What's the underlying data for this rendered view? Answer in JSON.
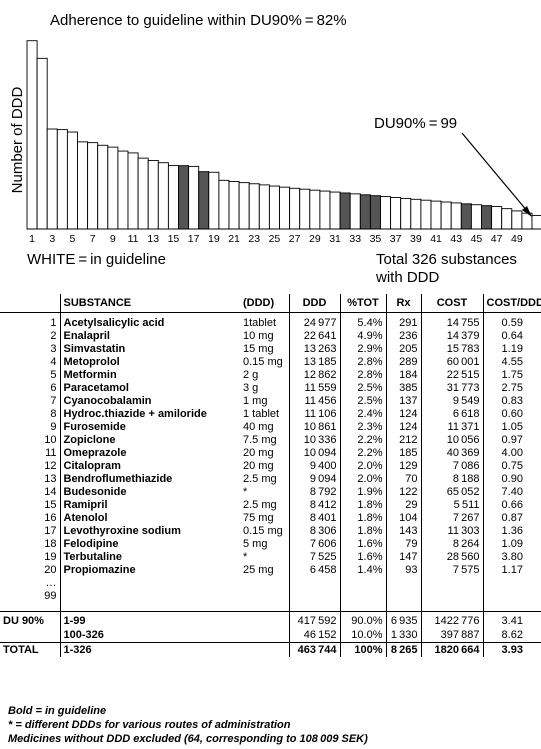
{
  "chart_data": {
    "type": "bar",
    "title": "Adherence to guideline within DU90% = 82%",
    "ylabel": "Number of DDD",
    "xlabel": "",
    "x": [
      1,
      2,
      3,
      4,
      5,
      6,
      7,
      8,
      9,
      10,
      11,
      12,
      13,
      14,
      15,
      16,
      17,
      18,
      19,
      20,
      21,
      22,
      23,
      24,
      25,
      26,
      27,
      28,
      29,
      30,
      31,
      32,
      33,
      34,
      35,
      36,
      37,
      38,
      39,
      40,
      41,
      42,
      43,
      44,
      45,
      46,
      47,
      48,
      49,
      50,
      51
    ],
    "x_tick_labels": [
      "1",
      "3",
      "5",
      "7",
      "9",
      "11",
      "13",
      "15",
      "17",
      "19",
      "21",
      "23",
      "25",
      "27",
      "29",
      "31",
      "33",
      "35",
      "37",
      "39",
      "41",
      "43",
      "45",
      "47",
      "49"
    ],
    "values": [
      24977,
      22641,
      13263,
      13185,
      12862,
      11559,
      11456,
      11106,
      10861,
      10336,
      10094,
      9400,
      9094,
      8792,
      8412,
      8401,
      8306,
      7606,
      7525,
      6458,
      6300,
      6150,
      6000,
      5850,
      5700,
      5550,
      5400,
      5280,
      5150,
      5030,
      4900,
      4780,
      4660,
      4540,
      4420,
      4300,
      4180,
      4060,
      3940,
      3820,
      3700,
      3580,
      3460,
      3340,
      3220,
      3100,
      2980,
      2700,
      2400,
      2100,
      1800
    ],
    "in_guideline": [
      true,
      true,
      true,
      true,
      true,
      true,
      true,
      true,
      true,
      true,
      true,
      true,
      true,
      true,
      true,
      false,
      true,
      false,
      true,
      true,
      true,
      true,
      true,
      true,
      true,
      true,
      true,
      true,
      true,
      true,
      true,
      false,
      true,
      false,
      false,
      true,
      true,
      true,
      true,
      true,
      true,
      true,
      true,
      false,
      true,
      false,
      true,
      true,
      true,
      true,
      true
    ],
    "colors": {
      "in_guideline": "#ffffff",
      "not_in_guideline": "#555555",
      "outline": "#000000"
    },
    "ylim": [
      0,
      26000
    ],
    "legend": "WHITE = in guideline",
    "annotation": "DU90% = 99",
    "total_note": [
      "Total 326 substances",
      "with DDD"
    ]
  },
  "table": {
    "headers": {
      "substance": "SUBSTANCE",
      "ddd_unit": "(DDD)",
      "ddd": "DDD",
      "pct": "%TOT",
      "rx": "Rx",
      "cost": "COST",
      "cost_ddd": "COST/DDD"
    },
    "rows": [
      {
        "n": "1",
        "name": "Acetylsalicylic acid",
        "unit": "1tablet",
        "ddd": "24 977",
        "pct": "5.4%",
        "rx": "291",
        "cost": "14 755",
        "cpd": "0.59"
      },
      {
        "n": "2",
        "name": "Enalapril",
        "unit": "10 mg",
        "ddd": "22 641",
        "pct": "4.9%",
        "rx": "236",
        "cost": "14 379",
        "cpd": "0.64"
      },
      {
        "n": "3",
        "name": "Simvastatin",
        "unit": "15 mg",
        "ddd": "13 263",
        "pct": "2.9%",
        "rx": "205",
        "cost": "15 783",
        "cpd": "1.19"
      },
      {
        "n": "4",
        "name": "Metoprolol",
        "unit": "0.15 mg",
        "ddd": "13 185",
        "pct": "2.8%",
        "rx": "289",
        "cost": "60 001",
        "cpd": "4.55"
      },
      {
        "n": "5",
        "name": "Metformin",
        "unit": "2 g",
        "ddd": "12 862",
        "pct": "2.8%",
        "rx": "184",
        "cost": "22 515",
        "cpd": "1.75"
      },
      {
        "n": "6",
        "name": "Paracetamol",
        "unit": "3 g",
        "ddd": "11 559",
        "pct": "2.5%",
        "rx": "385",
        "cost": "31 773",
        "cpd": "2.75"
      },
      {
        "n": "7",
        "name": "Cyanocobalamin",
        "unit": "1 mg",
        "ddd": "11 456",
        "pct": "2.5%",
        "rx": "137",
        "cost": "9 549",
        "cpd": "0.83"
      },
      {
        "n": "8",
        "name": "Hydroc.thiazide + amiloride",
        "unit": "1 tablet",
        "ddd": "11 106",
        "pct": "2.4%",
        "rx": "124",
        "cost": "6 618",
        "cpd": "0.60"
      },
      {
        "n": "9",
        "name": "Furosemide",
        "unit": "40 mg",
        "ddd": "10 861",
        "pct": "2.3%",
        "rx": "124",
        "cost": "11 371",
        "cpd": "1.05"
      },
      {
        "n": "10",
        "name": "Zopiclone",
        "unit": "7.5 mg",
        "ddd": "10 336",
        "pct": "2.2%",
        "rx": "212",
        "cost": "10 056",
        "cpd": "0.97"
      },
      {
        "n": "11",
        "name": "Omeprazole",
        "unit": "20 mg",
        "ddd": "10 094",
        "pct": "2.2%",
        "rx": "185",
        "cost": "40 369",
        "cpd": "4.00"
      },
      {
        "n": "12",
        "name": "Citalopram",
        "unit": "20 mg",
        "ddd": "9 400",
        "pct": "2.0%",
        "rx": "129",
        "cost": "7 086",
        "cpd": "0.75"
      },
      {
        "n": "13",
        "name": "Bendroflumethiazide",
        "unit": "2.5 mg",
        "ddd": "9 094",
        "pct": "2.0%",
        "rx": "70",
        "cost": "8 188",
        "cpd": "0.90"
      },
      {
        "n": "14",
        "name": "Budesonide",
        "unit": "*",
        "ddd": "8 792",
        "pct": "1.9%",
        "rx": "122",
        "cost": "65 052",
        "cpd": "7.40"
      },
      {
        "n": "15",
        "name": "Ramipril",
        "unit": "2.5 mg",
        "ddd": "8 412",
        "pct": "1.8%",
        "rx": "29",
        "cost": "5 511",
        "cpd": "0.66"
      },
      {
        "n": "16",
        "name": "Atenolol",
        "unit": "75 mg",
        "ddd": "8 401",
        "pct": "1.8%",
        "rx": "104",
        "cost": "7 267",
        "cpd": "0.87"
      },
      {
        "n": "17",
        "name": "Levothyroxine sodium",
        "unit": "0.15 mg",
        "ddd": "8 306",
        "pct": "1.8%",
        "rx": "143",
        "cost": "11 303",
        "cpd": "1.36"
      },
      {
        "n": "18",
        "name": "Felodipine",
        "unit": "5 mg",
        "ddd": "7 606",
        "pct": "1.6%",
        "rx": "79",
        "cost": "8 264",
        "cpd": "1.09"
      },
      {
        "n": "19",
        "name": "Terbutaline",
        "unit": "*",
        "ddd": "7 525",
        "pct": "1.6%",
        "rx": "147",
        "cost": "28 560",
        "cpd": "3.80"
      },
      {
        "n": "20",
        "name": "Propiomazine",
        "unit": "25 mg",
        "ddd": "6 458",
        "pct": "1.4%",
        "rx": "93",
        "cost": "7 575",
        "cpd": "1.17"
      }
    ],
    "ellipsis": "…",
    "last_index": "99",
    "du90_label": "DU 90%",
    "du90_rows": [
      {
        "range": "1-99",
        "ddd": "417 592",
        "pct": "90.0%",
        "rx": "6 935",
        "cost": "1422 776",
        "cpd": "3.41"
      },
      {
        "range": "100-326",
        "ddd": "46 152",
        "pct": "10.0%",
        "rx": "1 330",
        "cost": "397 887",
        "cpd": "8.62"
      }
    ],
    "total": {
      "label": "TOTAL",
      "range": "1-326",
      "ddd": "463 744",
      "pct": "100%",
      "rx": "8 265",
      "cost": "1820 664",
      "cpd": "3.93"
    }
  },
  "notes": [
    "Bold = in guideline",
    "* = different DDDs for various routes of administration",
    "Medicines without DDD excluded (64, corresponding to 108 009 SEK)"
  ]
}
